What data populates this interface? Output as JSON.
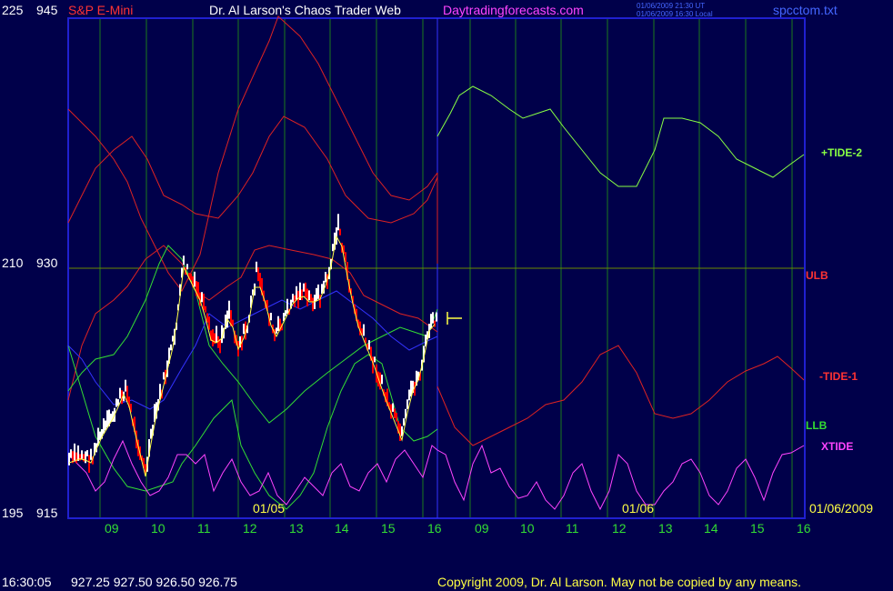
{
  "header": {
    "symbol": "S&P E-Mini",
    "title": "Dr. Al Larson's Chaos Trader Web",
    "site": "Daytradingforecasts.com",
    "ts_ut": "01/06/2009 21:30 UT",
    "ts_local": "01/06/2009 16:30 Local",
    "file": "spcctom.txt"
  },
  "footer": {
    "time": "16:30:05",
    "ohlc": "927.25 927.50 926.50 926.75",
    "copyright": "Copyright 2009, Dr. Al Larson. May not be copied by any means."
  },
  "colors": {
    "background": "#00004a",
    "frame": "#2020d0",
    "grid_vertical": "#1c7a1c",
    "grid_horizontal": "#6b8a00",
    "price_up": "#ffffff",
    "price_down": "#ff0000",
    "tide_plus2": "#88ff44",
    "ulb": "#dd2222",
    "tide_minus1": "#dd2222",
    "llb": "#33dd33",
    "xtide": "#ff44ff",
    "moving_avg": "#3333ff",
    "fast_avg": "#ffff44"
  },
  "chart_data": {
    "type": "line",
    "y_axis_left": {
      "labels": [
        "225",
        "210",
        "195"
      ]
    },
    "y_axis_price": {
      "labels": [
        "945",
        "930",
        "915"
      ],
      "range": [
        915,
        945
      ]
    },
    "x_ticks": [
      "09",
      "10",
      "11",
      "12",
      "13",
      "14",
      "15",
      "16",
      "09",
      "10",
      "11",
      "12",
      "13",
      "14",
      "15",
      "16"
    ],
    "date_labels": [
      "01/05",
      "01/06",
      "01/06/2009"
    ],
    "line_labels": {
      "tide_plus2": "+TIDE-2",
      "ulb": "ULB",
      "tide_minus1": "-TIDE-1",
      "llb": "LLB",
      "xtide": "XTIDE"
    },
    "last_price": 926.75,
    "grid": true
  }
}
